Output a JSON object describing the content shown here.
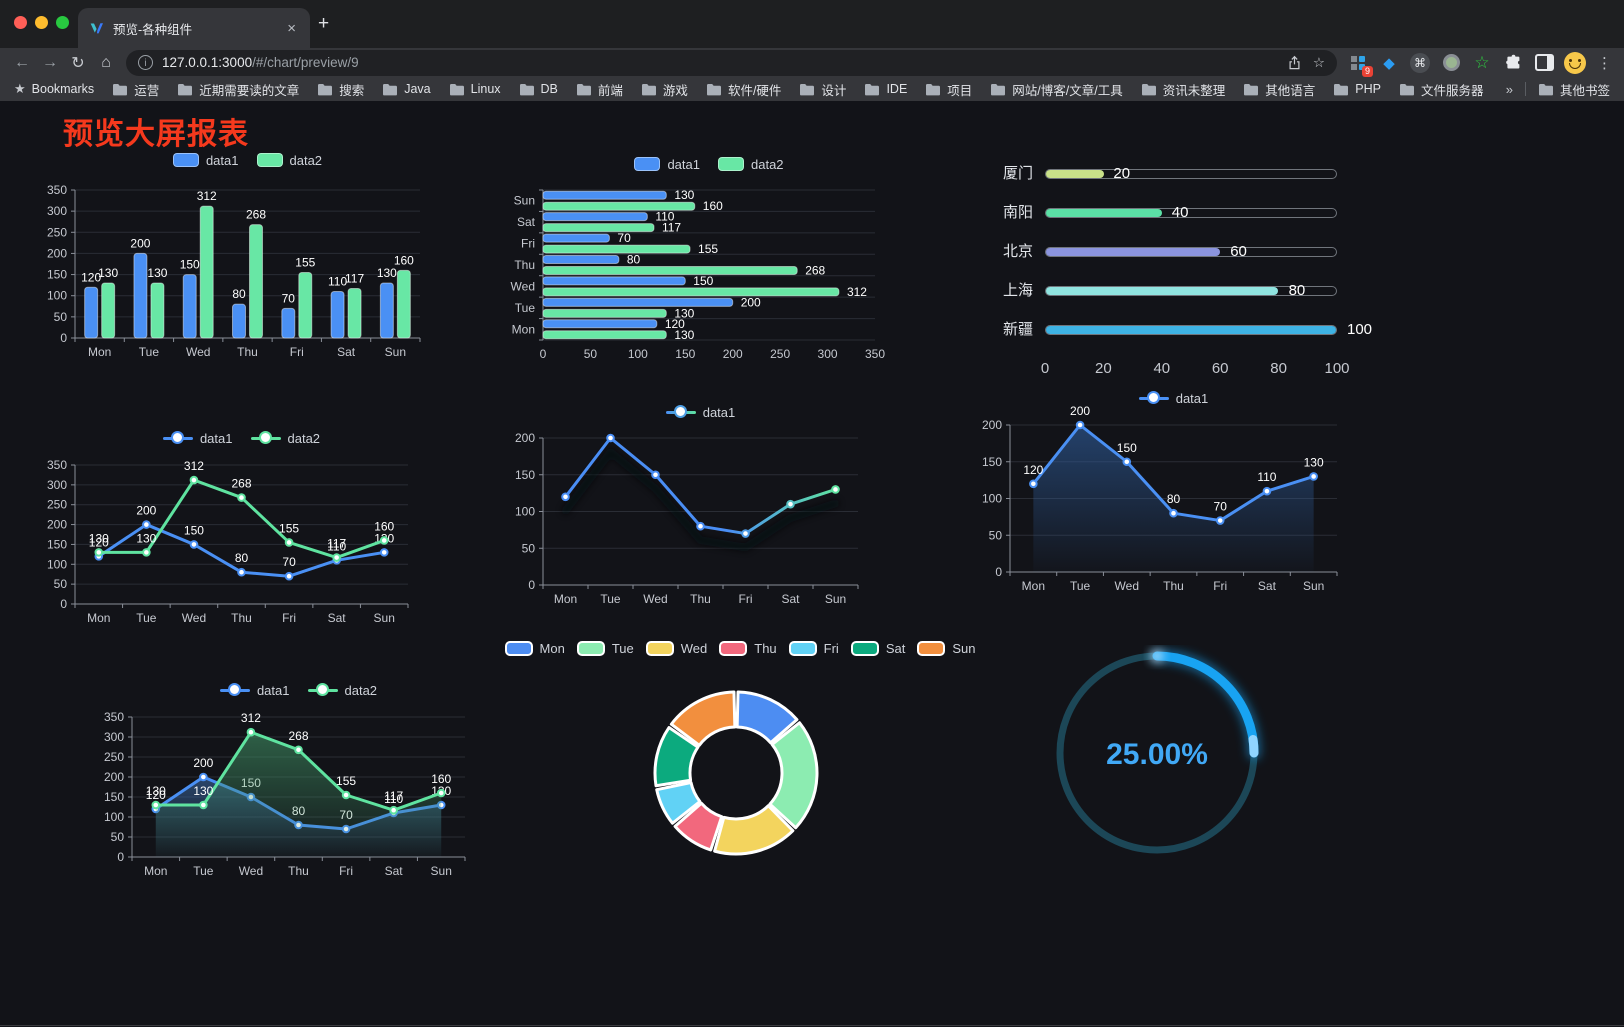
{
  "browser": {
    "tab_title": "预览-各种组件",
    "url_host": "127.0.0.1:3000",
    "url_path": "/#/chart/preview/9",
    "bookmarks_label": "Bookmarks",
    "bookmarks": [
      "运营",
      "近期需要读的文章",
      "搜索",
      "Java",
      "Linux",
      "DB",
      "前端",
      "游戏",
      "软件/硬件",
      "设计",
      "IDE",
      "项目",
      "网站/博客/文章/工具",
      "资讯未整理",
      "其他语言",
      "PHP",
      "文件服务器"
    ],
    "overflow_chevron": "»",
    "other_bookmarks": "其他书签",
    "extension_badge": "9",
    "icons": {
      "back": "←",
      "forward": "→",
      "reload": "↻",
      "home": "⌂",
      "close": "×",
      "plus": "+",
      "star": "☆",
      "bookmarks_star": "★",
      "menu": "⋮",
      "cmd": "⌘",
      "diamond": "◆",
      "green_star": "☆",
      "info": "i"
    }
  },
  "page": {
    "title": "预览大屏报表",
    "title_color": "#f5391d",
    "background": "#121318"
  },
  "chart_data": [
    {
      "id": "bar-vertical",
      "type": "bar",
      "categories": [
        "Mon",
        "Tue",
        "Wed",
        "Thu",
        "Fri",
        "Sat",
        "Sun"
      ],
      "series": [
        {
          "name": "data1",
          "color": "#4a90f4",
          "values": [
            120,
            200,
            150,
            80,
            70,
            110,
            130
          ]
        },
        {
          "name": "data2",
          "color": "#68e7a5",
          "values": [
            130,
            130,
            312,
            268,
            155,
            117,
            160
          ]
        }
      ],
      "ylim": [
        0,
        350
      ],
      "yinterval": 50,
      "legend": "rect",
      "value_labels": true,
      "grid": true
    },
    {
      "id": "bar-horizontal",
      "type": "hbar",
      "categories": [
        "Mon",
        "Tue",
        "Wed",
        "Thu",
        "Fri",
        "Sat",
        "Sun"
      ],
      "series": [
        {
          "name": "data1",
          "color": "#4a90f4",
          "values": [
            120,
            200,
            150,
            80,
            70,
            110,
            130
          ]
        },
        {
          "name": "data2",
          "color": "#68e7a5",
          "values": [
            130,
            130,
            312,
            268,
            155,
            117,
            160
          ]
        }
      ],
      "xlim": [
        0,
        350
      ],
      "xinterval": 50,
      "legend": "rect",
      "value_labels": true
    },
    {
      "id": "progress-bars",
      "type": "progress",
      "max": 100,
      "axis_ticks": [
        0,
        20,
        40,
        60,
        80,
        100
      ],
      "items": [
        {
          "label": "厦门",
          "value": 20,
          "color": "#c9e189"
        },
        {
          "label": "南阳",
          "value": 40,
          "color": "#5be0a6"
        },
        {
          "label": "北京",
          "value": 60,
          "color": "#8b94de"
        },
        {
          "label": "上海",
          "value": 80,
          "color": "#90e4e0"
        },
        {
          "label": "新疆",
          "value": 100,
          "color": "#3eb3e4"
        }
      ]
    },
    {
      "id": "line-two-series",
      "type": "line",
      "categories": [
        "Mon",
        "Tue",
        "Wed",
        "Thu",
        "Fri",
        "Sat",
        "Sun"
      ],
      "series": [
        {
          "name": "data1",
          "color": "#4a90f4",
          "values": [
            120,
            200,
            150,
            80,
            70,
            110,
            130
          ]
        },
        {
          "name": "data2",
          "color": "#5fe3a0",
          "values": [
            130,
            130,
            312,
            268,
            155,
            117,
            160
          ]
        }
      ],
      "ylim": [
        0,
        350
      ],
      "yinterval": 50,
      "legend": "line",
      "value_labels": true
    },
    {
      "id": "line-gradient",
      "type": "line",
      "categories": [
        "Mon",
        "Tue",
        "Wed",
        "Thu",
        "Fri",
        "Sat",
        "Sun"
      ],
      "series": [
        {
          "name": "data1",
          "color": "#4a8ef5",
          "gradient": [
            "#4a8ef5",
            "#5fe3a0"
          ],
          "values": [
            120,
            200,
            150,
            80,
            70,
            110,
            130
          ]
        }
      ],
      "ylim": [
        0,
        200
      ],
      "yinterval": 50,
      "legend": "line",
      "value_labels": false,
      "shadow": true
    },
    {
      "id": "line-area",
      "type": "line",
      "categories": [
        "Mon",
        "Tue",
        "Wed",
        "Thu",
        "Fri",
        "Sat",
        "Sun"
      ],
      "series": [
        {
          "name": "data1",
          "color": "#4a90f4",
          "area": "#2f5e9e",
          "values": [
            120,
            200,
            150,
            80,
            70,
            110,
            130
          ]
        }
      ],
      "ylim": [
        0,
        200
      ],
      "yinterval": 50,
      "legend": "line",
      "value_labels": true
    },
    {
      "id": "line-two-series-area",
      "type": "line",
      "categories": [
        "Mon",
        "Tue",
        "Wed",
        "Thu",
        "Fri",
        "Sat",
        "Sun"
      ],
      "series": [
        {
          "name": "data1",
          "color": "#4a90f4",
          "area": "#39659f",
          "values": [
            120,
            200,
            150,
            80,
            70,
            110,
            130
          ]
        },
        {
          "name": "data2",
          "color": "#5fe3a0",
          "area": "#3f8f63",
          "values": [
            130,
            130,
            312,
            268,
            155,
            117,
            160
          ]
        }
      ],
      "ylim": [
        0,
        350
      ],
      "yinterval": 50,
      "legend": "line",
      "value_labels": true
    },
    {
      "id": "donut",
      "type": "donut",
      "items": [
        {
          "label": "Mon",
          "value": 120,
          "color": "#4d8df2"
        },
        {
          "label": "Tue",
          "value": 200,
          "color": "#8cecb1"
        },
        {
          "label": "Wed",
          "value": 150,
          "color": "#f3d45e"
        },
        {
          "label": "Thu",
          "value": 80,
          "color": "#f2687d"
        },
        {
          "label": "Fri",
          "value": 70,
          "color": "#61d2f5"
        },
        {
          "label": "Sat",
          "value": 110,
          "color": "#0caa7e"
        },
        {
          "label": "Sun",
          "value": 130,
          "color": "#f28f3e"
        }
      ]
    },
    {
      "id": "gauge",
      "type": "gauge",
      "value": 25,
      "max": 100,
      "label": "25.00%",
      "color": "#18a3f2",
      "tip_color": "#8fd4ff",
      "track_color": "#1c4757",
      "text_color": "#41a9f6"
    }
  ]
}
